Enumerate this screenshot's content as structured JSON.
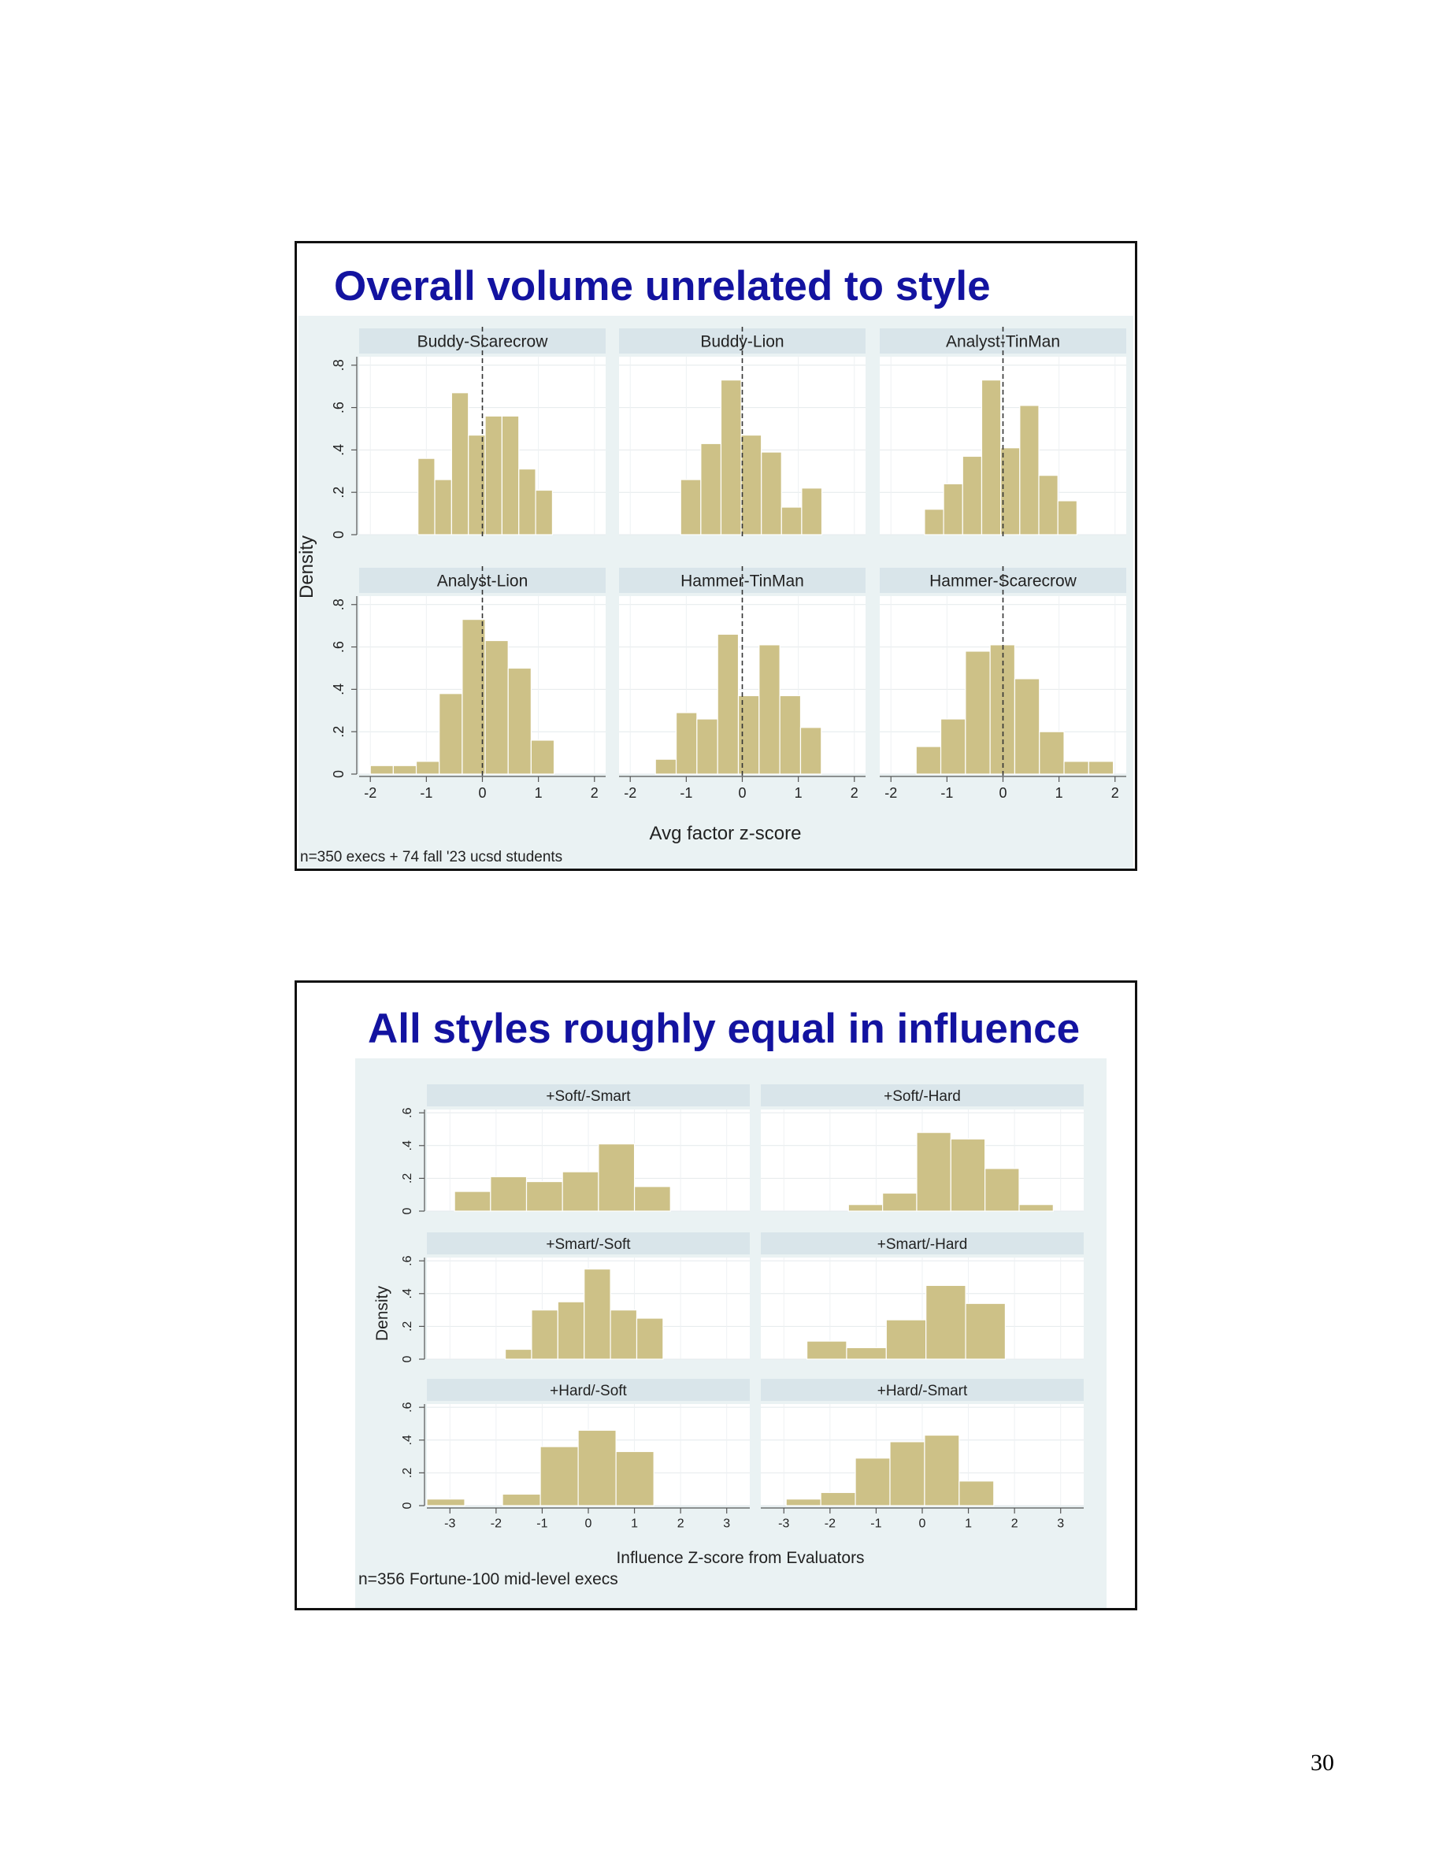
{
  "page_number": "30",
  "slides": [
    {
      "title": "Overall volume unrelated to style",
      "note": "n=350 execs + 74 fall '23 ucsd students"
    },
    {
      "title": "All styles roughly equal in influence",
      "note": "n=356 Fortune-100 mid-level execs"
    }
  ],
  "colors": {
    "bar_fill": "#cdc187",
    "bar_stroke": "#ffffff",
    "strip_bg": "#d9e5ea",
    "plot_outer_bg": "#eaf2f3",
    "title_color": "#1313a0"
  },
  "chart_data": [
    {
      "type": "bar",
      "subtype": "histogram-facets",
      "xlabel": "Avg factor z-score",
      "ylabel": "Density",
      "xlim": [
        -2.2,
        2.2
      ],
      "ylim": [
        0,
        0.84
      ],
      "xticks": [
        -2,
        -1,
        0,
        1,
        2
      ],
      "yticks": [
        0,
        0.2,
        0.4,
        0.6,
        0.8
      ],
      "ytick_labels": [
        "0",
        ".2",
        ".4",
        ".6",
        ".8"
      ],
      "reference_line_x": 0,
      "grid": true,
      "facets": [
        {
          "name": "Buddy-Scarecrow",
          "bin_width": 0.3,
          "x0": -1.15,
          "values": [
            0.36,
            0.26,
            0.67,
            0.47,
            0.56,
            0.56,
            0.31,
            0.21
          ]
        },
        {
          "name": "Buddy-Lion",
          "bin_width": 0.36,
          "x0": -1.1,
          "values": [
            0.26,
            0.43,
            0.73,
            0.47,
            0.39,
            0.13,
            0.22
          ]
        },
        {
          "name": "Analyst-TinMan",
          "bin_width": 0.34,
          "x0": -1.4,
          "values": [
            0.12,
            0.24,
            0.37,
            0.73,
            0.41,
            0.61,
            0.28,
            0.16
          ]
        },
        {
          "name": "Analyst-Lion",
          "bin_width": 0.41,
          "x0": -2.0,
          "values": [
            0.04,
            0.04,
            0.06,
            0.38,
            0.73,
            0.63,
            0.5,
            0.16
          ]
        },
        {
          "name": "Hammer-TinMan",
          "bin_width": 0.37,
          "x0": -1.55,
          "values": [
            0.07,
            0.29,
            0.26,
            0.66,
            0.37,
            0.61,
            0.37,
            0.22
          ]
        },
        {
          "name": "Hammer-Scarecrow",
          "bin_width": 0.44,
          "x0": -1.55,
          "values": [
            0.13,
            0.26,
            0.58,
            0.61,
            0.45,
            0.2,
            0.06,
            0.06
          ]
        }
      ]
    },
    {
      "type": "bar",
      "subtype": "histogram-facets",
      "xlabel": "Influence Z-score from Evaluators",
      "ylabel": "Density",
      "xlim": [
        -3.5,
        3.5
      ],
      "ylim": [
        0,
        0.62
      ],
      "xticks": [
        -3,
        -2,
        -1,
        0,
        1,
        2,
        3
      ],
      "yticks": [
        0,
        0.2,
        0.4,
        0.6
      ],
      "ytick_labels": [
        "0",
        ".2",
        ".4",
        ".6"
      ],
      "grid": true,
      "facets": [
        {
          "name": "+Soft/-Smart",
          "bin_width": 0.78,
          "x0": -2.9,
          "values": [
            0.12,
            0.21,
            0.18,
            0.24,
            0.41,
            0.15
          ]
        },
        {
          "name": "+Soft/-Hard",
          "bin_width": 0.74,
          "x0": -1.6,
          "values": [
            0.04,
            0.11,
            0.48,
            0.44,
            0.26,
            0.04
          ]
        },
        {
          "name": "+Smart/-Soft",
          "bin_width": 0.57,
          "x0": -1.8,
          "values": [
            0.06,
            0.3,
            0.35,
            0.55,
            0.3,
            0.25
          ]
        },
        {
          "name": "+Smart/-Hard",
          "bin_width": 0.86,
          "x0": -2.5,
          "values": [
            0.11,
            0.07,
            0.24,
            0.45,
            0.34
          ]
        },
        {
          "name": "+Hard/-Soft",
          "bin_width": 0.82,
          "x0": -3.5,
          "values": [
            0.04,
            0,
            0.07,
            0.36,
            0.46,
            0.33
          ]
        },
        {
          "name": "+Hard/-Smart",
          "bin_width": 0.75,
          "x0": -2.95,
          "values": [
            0.04,
            0.08,
            0.29,
            0.39,
            0.43,
            0.15
          ]
        }
      ]
    }
  ]
}
